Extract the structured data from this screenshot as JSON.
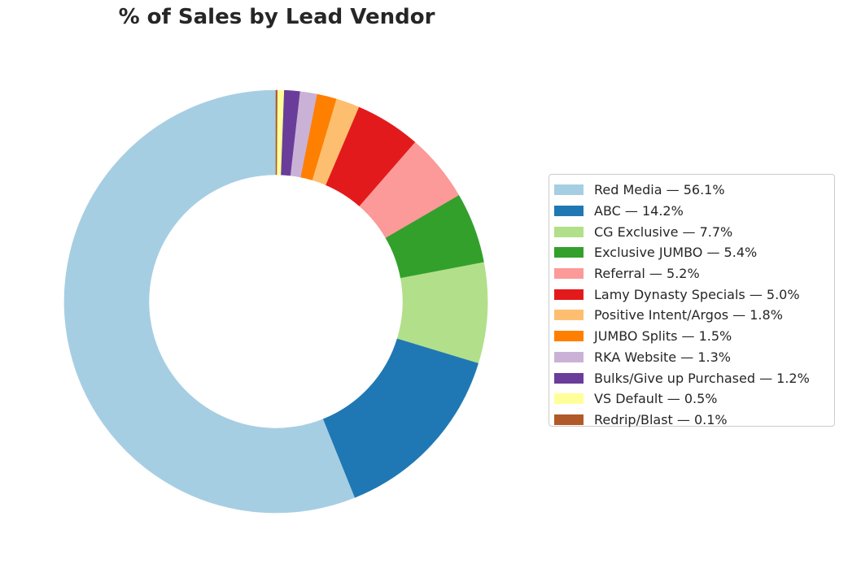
{
  "chart_data": {
    "type": "pie",
    "title": "% of Sales by Lead Vendor",
    "donut": true,
    "legend_position": "right",
    "slices": [
      {
        "label": "Red Media — 56.1%",
        "name": "Red Media",
        "value": 56.1,
        "color": "#a6cee3"
      },
      {
        "label": "ABC — 14.2%",
        "name": "ABC",
        "value": 14.2,
        "color": "#1f78b4"
      },
      {
        "label": "CG Exclusive — 7.7%",
        "name": "CG Exclusive",
        "value": 7.7,
        "color": "#b2df8a"
      },
      {
        "label": "Exclusive JUMBO — 5.4%",
        "name": "Exclusive JUMBO",
        "value": 5.4,
        "color": "#33a02c"
      },
      {
        "label": "Referral — 5.2%",
        "name": "Referral",
        "value": 5.2,
        "color": "#fb9a99"
      },
      {
        "label": "Lamy Dynasty Specials — 5.0%",
        "name": "Lamy Dynasty Specials",
        "value": 5.0,
        "color": "#e31a1c"
      },
      {
        "label": "Positive Intent/Argos — 1.8%",
        "name": "Positive Intent/Argos",
        "value": 1.8,
        "color": "#fdbf6f"
      },
      {
        "label": "JUMBO Splits — 1.5%",
        "name": "JUMBO Splits",
        "value": 1.5,
        "color": "#ff7f00"
      },
      {
        "label": "RKA Website — 1.3%",
        "name": "RKA Website",
        "value": 1.3,
        "color": "#cab2d6"
      },
      {
        "label": "Bulks/Give up Purchased — 1.2%",
        "name": "Bulks/Give up Purchased",
        "value": 1.2,
        "color": "#6a3d9a"
      },
      {
        "label": "VS Default — 0.5%",
        "name": "VS Default",
        "value": 0.5,
        "color": "#ffff99"
      },
      {
        "label": "Redrip/Blast — 0.1%",
        "name": "Redrip/Blast",
        "value": 0.1,
        "color": "#b15928"
      }
    ]
  }
}
